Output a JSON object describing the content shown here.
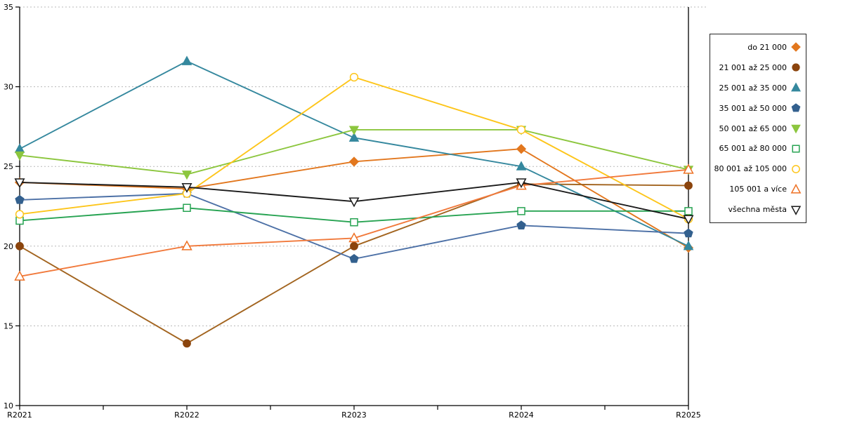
{
  "chart_data": {
    "type": "line",
    "title": "",
    "xlabel": "",
    "ylabel": "",
    "categories": [
      "R2021",
      "R2022",
      "R2023",
      "R2024",
      "R2025"
    ],
    "ylim": [
      10,
      35
    ],
    "yticks": [
      10,
      15,
      20,
      25,
      30,
      35
    ],
    "grid": {
      "horizontal": "dotted",
      "color": "#b8b8b8"
    },
    "legend_position": "right",
    "axis_color": "#000000",
    "series": [
      {
        "name": "do 21 000",
        "marker": "diamond",
        "fill": "solid",
        "color": "#E2771E",
        "values": [
          24.0,
          23.6,
          25.3,
          26.1,
          19.9
        ]
      },
      {
        "name": "21 001 až 25 000",
        "marker": "circle",
        "fill": "solid",
        "color": "#8B440D",
        "line_color": "#A2641F",
        "values": [
          20.0,
          13.9,
          20.0,
          23.9,
          23.8
        ]
      },
      {
        "name": "25 001 až 35 000",
        "marker": "triangle-up",
        "fill": "solid",
        "color": "#35889E",
        "values": [
          26.1,
          31.6,
          26.8,
          25.0,
          20.0
        ]
      },
      {
        "name": "35 001 až 50 000",
        "marker": "pentagon",
        "fill": "solid",
        "color": "#33608E",
        "line_color": "#4C70A6",
        "values": [
          22.9,
          23.3,
          19.2,
          21.3,
          20.8
        ]
      },
      {
        "name": "50 001 až 65 000",
        "marker": "triangle-down",
        "fill": "solid",
        "color": "#8CC63E",
        "values": [
          25.7,
          24.5,
          27.3,
          27.3,
          24.8
        ]
      },
      {
        "name": "65 001 až 80 000",
        "marker": "square",
        "fill": "open",
        "color": "#27A352",
        "values": [
          21.6,
          22.4,
          21.5,
          22.2,
          22.2
        ]
      },
      {
        "name": "80 001 až 105 000",
        "marker": "circle",
        "fill": "open",
        "color": "#FDC51A",
        "values": [
          22.0,
          23.3,
          30.6,
          27.3,
          21.7
        ]
      },
      {
        "name": "105 001 a více",
        "marker": "triangle-up",
        "fill": "open",
        "color": "#EE7124",
        "line_color": "#F1793B",
        "values": [
          18.1,
          20.0,
          20.5,
          23.8,
          24.8
        ]
      },
      {
        "name": "všechna města",
        "marker": "triangle-down",
        "fill": "open",
        "color": "#1A1A1A",
        "values": [
          24.0,
          23.7,
          22.8,
          24.0,
          21.7
        ]
      }
    ]
  }
}
